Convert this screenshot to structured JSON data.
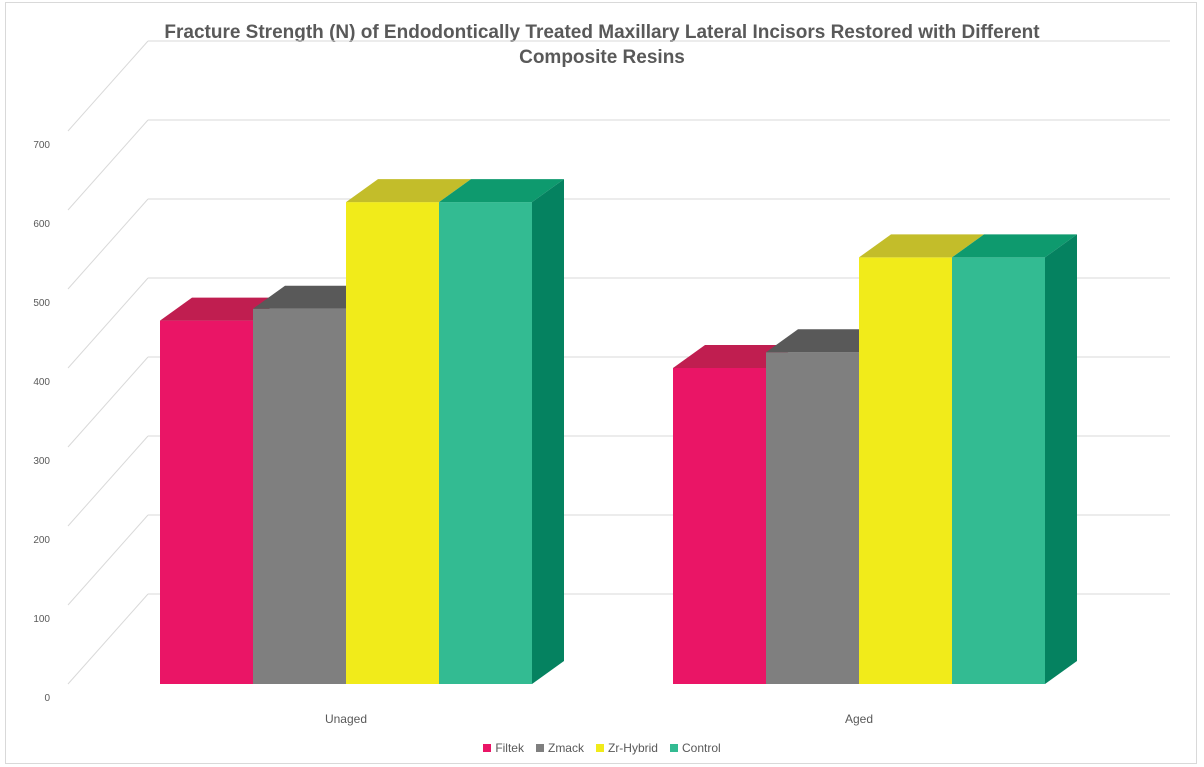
{
  "chart_data": {
    "type": "bar",
    "title_lines": [
      "Fracture Strength (N) of Endodontically Treated Maxillary Lateral Incisors Restored with Different",
      "Composite Resins"
    ],
    "categories": [
      "Unaged",
      "Aged"
    ],
    "series": [
      {
        "name": "Filtek",
        "values": [
          460,
          400
        ],
        "color": "#ea1566",
        "top_color": "#c01e50",
        "side_color": "#c01e50"
      },
      {
        "name": "Zmack",
        "values": [
          475,
          420
        ],
        "color": "#7f7f7f",
        "top_color": "#595959",
        "side_color": "#595959"
      },
      {
        "name": "Zr-Hybrid",
        "values": [
          610,
          540
        ],
        "color": "#f1eb1a",
        "top_color": "#c3bd2a",
        "side_color": "#c3bd2a"
      },
      {
        "name": "Control",
        "values": [
          610,
          540
        ],
        "color": "#33bb92",
        "top_color": "#0e9a6e",
        "side_color": "#058260"
      }
    ],
    "y_ticks": [
      0,
      100,
      200,
      300,
      400,
      500,
      600,
      700
    ],
    "ylim": [
      0,
      700
    ],
    "grid": true,
    "legend_position": "bottom",
    "style": "3d-column"
  }
}
